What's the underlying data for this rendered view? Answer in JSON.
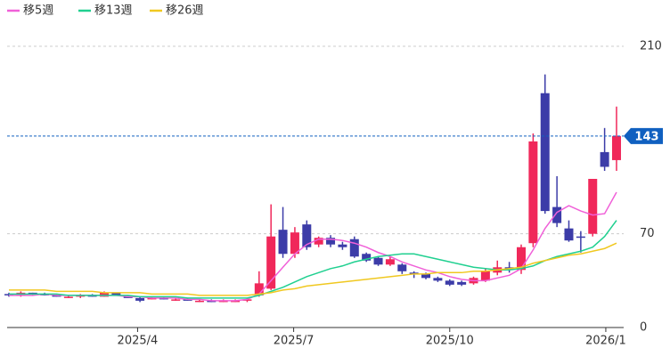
{
  "chart_data": {
    "type": "candlestick",
    "open": [
      25,
      24,
      26,
      25,
      24,
      23,
      23,
      24,
      23,
      26,
      24,
      22,
      22,
      22,
      21,
      21,
      20,
      20,
      19,
      20,
      20,
      24,
      29,
      73,
      55,
      77,
      62,
      67,
      62,
      66,
      55,
      52,
      47,
      47,
      41,
      40,
      37,
      35,
      34,
      33,
      35,
      41,
      45,
      43,
      63,
      175,
      90,
      74,
      68,
      70,
      131,
      125
    ],
    "high": [
      26,
      27,
      26,
      26,
      25,
      24,
      25,
      25,
      27,
      26,
      24,
      23,
      23,
      23,
      22,
      22,
      21,
      21,
      21,
      21,
      22,
      42,
      92,
      90,
      75,
      80,
      68,
      69,
      64,
      68,
      56,
      53,
      53,
      48,
      42,
      41,
      38,
      36,
      35,
      38,
      44,
      50,
      49,
      62,
      145,
      189,
      113,
      80,
      72,
      111,
      149,
      165
    ],
    "low": [
      23,
      23,
      24,
      24,
      23,
      22,
      22,
      23,
      23,
      24,
      22,
      19,
      21,
      21,
      20,
      20,
      19,
      19,
      19,
      19,
      19,
      23,
      28,
      52,
      52,
      58,
      60,
      60,
      58,
      52,
      49,
      46,
      46,
      40,
      37,
      36,
      34,
      31,
      31,
      32,
      34,
      39,
      41,
      40,
      60,
      85,
      75,
      64,
      56,
      68,
      117,
      117
    ],
    "close": [
      24,
      26,
      25,
      24,
      23,
      23,
      24,
      23,
      26,
      24,
      22,
      20,
      22,
      21,
      21,
      20,
      20,
      19,
      20,
      20,
      21,
      33,
      68,
      55,
      71,
      60,
      67,
      62,
      60,
      53,
      50,
      47,
      51,
      42,
      40,
      37,
      35,
      32,
      32,
      37,
      42,
      45,
      43,
      60,
      139,
      87,
      78,
      65,
      67,
      111,
      120,
      143
    ],
    "up_color": "#f0285a",
    "down_color": "#3c3ca8",
    "series": [
      {
        "name": "移5週",
        "color": "#f060d8",
        "values": [
          24,
          24,
          24,
          25,
          24,
          24,
          24,
          24,
          24,
          24,
          23,
          23,
          22,
          22,
          22,
          21,
          21,
          20,
          20,
          20,
          21,
          25,
          35,
          45,
          55,
          62,
          66,
          66,
          65,
          63,
          60,
          56,
          53,
          49,
          46,
          43,
          41,
          38,
          36,
          35,
          35,
          37,
          39,
          44,
          58,
          74,
          86,
          91,
          87,
          84,
          85,
          101
        ]
      },
      {
        "name": "移13週",
        "color": "#20d090",
        "values": [
          25,
          25,
          25,
          25,
          25,
          24,
          24,
          24,
          24,
          24,
          24,
          23,
          23,
          23,
          23,
          22,
          22,
          22,
          22,
          22,
          22,
          24,
          27,
          30,
          34,
          38,
          41,
          44,
          46,
          49,
          51,
          53,
          54,
          55,
          55,
          53,
          51,
          49,
          47,
          45,
          44,
          43,
          43,
          44,
          46,
          50,
          53,
          55,
          57,
          60,
          68,
          80
        ]
      },
      {
        "name": "移26週",
        "color": "#f0c820",
        "values": [
          28,
          28,
          28,
          28,
          27,
          27,
          27,
          27,
          26,
          26,
          26,
          26,
          25,
          25,
          25,
          25,
          24,
          24,
          24,
          24,
          24,
          25,
          26,
          28,
          29,
          31,
          32,
          33,
          34,
          35,
          36,
          37,
          38,
          39,
          40,
          40,
          41,
          41,
          41,
          42,
          42,
          43,
          44,
          45,
          48,
          50,
          52,
          54,
          55,
          57,
          59,
          63
        ]
      }
    ],
    "last_price": 143,
    "ylim": [
      0,
      218
    ],
    "yticks": [
      0,
      70,
      210
    ],
    "xlim": [
      -0.15,
      51.6
    ],
    "xticks": [
      {
        "value": 10.8,
        "label": "2025/4"
      },
      {
        "value": 23.9,
        "label": "2025/7"
      },
      {
        "value": 37,
        "label": "2025/10"
      },
      {
        "value": 50.1,
        "label": "2026/1"
      }
    ],
    "grid": true
  }
}
